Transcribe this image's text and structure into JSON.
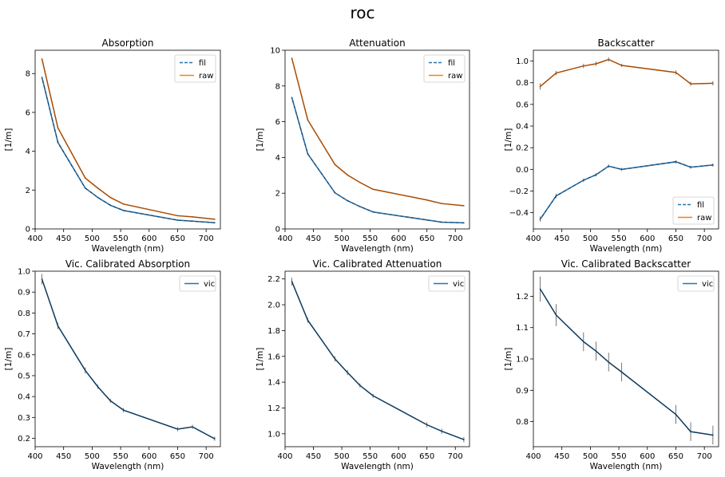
{
  "figure": {
    "suptitle": "roc"
  },
  "chart_data": [
    {
      "type": "line",
      "title": "Absorption",
      "xlabel": "Wavelength (nm)",
      "ylabel": "[1/m]",
      "xlim": [
        400,
        725
      ],
      "ylim": [
        0,
        9.2
      ],
      "xticks": [
        400,
        450,
        500,
        550,
        600,
        650,
        700
      ],
      "yticks": [
        0,
        2,
        4,
        6,
        8
      ],
      "ytick_labels": [
        "0",
        "2",
        "4",
        "6",
        "8"
      ],
      "legend": {
        "placement": "top-right"
      },
      "series": [
        {
          "name": "fil",
          "color": "#1f77b4",
          "style": "dashed",
          "x": [
            412,
            440,
            488,
            510,
            532,
            555,
            650,
            676,
            715
          ],
          "y": [
            7.8,
            4.45,
            2.1,
            1.62,
            1.22,
            0.95,
            0.45,
            0.4,
            0.32
          ]
        },
        {
          "name": "raw",
          "color": "#ff7f0e",
          "style": "solid",
          "x": [
            412,
            440,
            488,
            510,
            532,
            555,
            650,
            676,
            715
          ],
          "y": [
            8.75,
            5.2,
            2.62,
            2.1,
            1.62,
            1.28,
            0.68,
            0.62,
            0.5
          ]
        }
      ]
    },
    {
      "type": "line",
      "title": "Attenuation",
      "xlabel": "Wavelength (nm)",
      "ylabel": "[1/m]",
      "xlim": [
        400,
        725
      ],
      "ylim": [
        0,
        10
      ],
      "xticks": [
        400,
        450,
        500,
        550,
        600,
        650,
        700
      ],
      "yticks": [
        0,
        2,
        4,
        6,
        8,
        10
      ],
      "ytick_labels": [
        "0",
        "2",
        "4",
        "6",
        "8",
        "10"
      ],
      "legend": {
        "placement": "top-right"
      },
      "series": [
        {
          "name": "fil",
          "color": "#1f77b4",
          "style": "dashed",
          "x": [
            412,
            440,
            488,
            510,
            532,
            555,
            650,
            676,
            715
          ],
          "y": [
            7.35,
            4.2,
            2.02,
            1.58,
            1.25,
            0.95,
            0.5,
            0.38,
            0.34
          ]
        },
        {
          "name": "raw",
          "color": "#ff7f0e",
          "style": "solid",
          "x": [
            412,
            440,
            488,
            510,
            532,
            555,
            650,
            676,
            715
          ],
          "y": [
            9.55,
            6.1,
            3.6,
            3.02,
            2.6,
            2.22,
            1.62,
            1.42,
            1.3
          ]
        }
      ]
    },
    {
      "type": "line",
      "title": "Backscatter",
      "xlabel": "Wavelength (nm)",
      "ylabel": "[1/m]",
      "xlim": [
        400,
        725
      ],
      "ylim": [
        -0.55,
        1.1
      ],
      "xticks": [
        400,
        450,
        500,
        550,
        600,
        650,
        700
      ],
      "yticks": [
        -0.4,
        -0.2,
        0.0,
        0.2,
        0.4,
        0.6,
        0.8,
        1.0
      ],
      "ytick_labels": [
        "−0.4",
        "−0.2",
        "0.0",
        "0.2",
        "0.4",
        "0.6",
        "0.8",
        "1.0"
      ],
      "legend": {
        "placement": "bottom-right"
      },
      "series": [
        {
          "name": "fil",
          "color": "#1f77b4",
          "style": "dashed",
          "x": [
            412,
            440,
            488,
            510,
            532,
            555,
            650,
            676,
            715
          ],
          "y": [
            -0.46,
            -0.245,
            -0.1,
            -0.05,
            0.03,
            0.0,
            0.07,
            0.02,
            0.04
          ],
          "err": [
            0.025,
            0.02,
            0.015,
            0.015,
            0.015,
            0.015,
            0.015,
            0.015,
            0.015
          ]
        },
        {
          "name": "raw",
          "color": "#ff7f0e",
          "style": "solid",
          "x": [
            412,
            440,
            488,
            510,
            532,
            555,
            650,
            676,
            715
          ],
          "y": [
            0.765,
            0.89,
            0.955,
            0.975,
            1.015,
            0.96,
            0.895,
            0.79,
            0.795
          ],
          "err": [
            0.03,
            0.02,
            0.02,
            0.02,
            0.02,
            0.015,
            0.02,
            0.02,
            0.02
          ]
        }
      ]
    },
    {
      "type": "line",
      "title": "Vic. Calibrated Absorption",
      "xlabel": "Wavelength (nm)",
      "ylabel": "[1/m]",
      "xlim": [
        400,
        725
      ],
      "ylim": [
        0.16,
        1.0
      ],
      "xticks": [
        400,
        450,
        500,
        550,
        600,
        650,
        700
      ],
      "yticks": [
        0.2,
        0.3,
        0.4,
        0.5,
        0.6,
        0.7,
        0.8,
        0.9,
        1.0
      ],
      "ytick_labels": [
        "0.2",
        "0.3",
        "0.4",
        "0.5",
        "0.6",
        "0.7",
        "0.8",
        "0.9",
        "1.0"
      ],
      "legend": {
        "placement": "top-right"
      },
      "series": [
        {
          "name": "vic",
          "color": "#1f77b4",
          "style": "solid",
          "x": [
            412,
            440,
            488,
            510,
            532,
            555,
            650,
            676,
            715
          ],
          "y": [
            0.962,
            0.738,
            0.525,
            0.447,
            0.38,
            0.335,
            0.244,
            0.255,
            0.198
          ],
          "err": [
            0.025,
            0.015,
            0.015,
            0.01,
            0.01,
            0.01,
            0.01,
            0.01,
            0.01
          ]
        }
      ]
    },
    {
      "type": "line",
      "title": "Vic. Calibrated Attenuation",
      "xlabel": "Wavelength (nm)",
      "ylabel": "[1/m]",
      "xlim": [
        400,
        725
      ],
      "ylim": [
        0.9,
        2.26
      ],
      "xticks": [
        400,
        450,
        500,
        550,
        600,
        650,
        700
      ],
      "yticks": [
        1.0,
        1.2,
        1.4,
        1.6,
        1.8,
        2.0,
        2.2
      ],
      "ytick_labels": [
        "1.0",
        "1.2",
        "1.4",
        "1.6",
        "1.8",
        "2.0",
        "2.2"
      ],
      "legend": {
        "placement": "top-right"
      },
      "series": [
        {
          "name": "vic",
          "color": "#1f77b4",
          "style": "solid",
          "x": [
            412,
            440,
            488,
            510,
            532,
            555,
            650,
            676,
            715
          ],
          "y": [
            2.18,
            1.88,
            1.58,
            1.475,
            1.375,
            1.295,
            1.07,
            1.02,
            0.955
          ],
          "err": [
            0.03,
            0.02,
            0.02,
            0.02,
            0.015,
            0.015,
            0.02,
            0.02,
            0.02
          ]
        }
      ]
    },
    {
      "type": "line",
      "title": "Vic. Calibrated Backscatter",
      "xlabel": "Wavelength (nm)",
      "ylabel": "[1/m]",
      "xlim": [
        400,
        725
      ],
      "ylim": [
        0.72,
        1.28
      ],
      "xticks": [
        400,
        450,
        500,
        550,
        600,
        650,
        700
      ],
      "yticks": [
        0.8,
        0.9,
        1.0,
        1.1,
        1.2
      ],
      "ytick_labels": [
        "0.8",
        "0.9",
        "1.0",
        "1.1",
        "1.2"
      ],
      "legend": {
        "placement": "top-right"
      },
      "series": [
        {
          "name": "vic",
          "color": "#1f77b4",
          "style": "solid",
          "x": [
            412,
            440,
            488,
            510,
            532,
            555,
            650,
            676,
            715
          ],
          "y": [
            1.223,
            1.14,
            1.055,
            1.025,
            0.99,
            0.958,
            0.823,
            0.768,
            0.757
          ],
          "err": [
            0.04,
            0.035,
            0.03,
            0.03,
            0.03,
            0.03,
            0.03,
            0.03,
            0.03
          ]
        }
      ]
    }
  ]
}
